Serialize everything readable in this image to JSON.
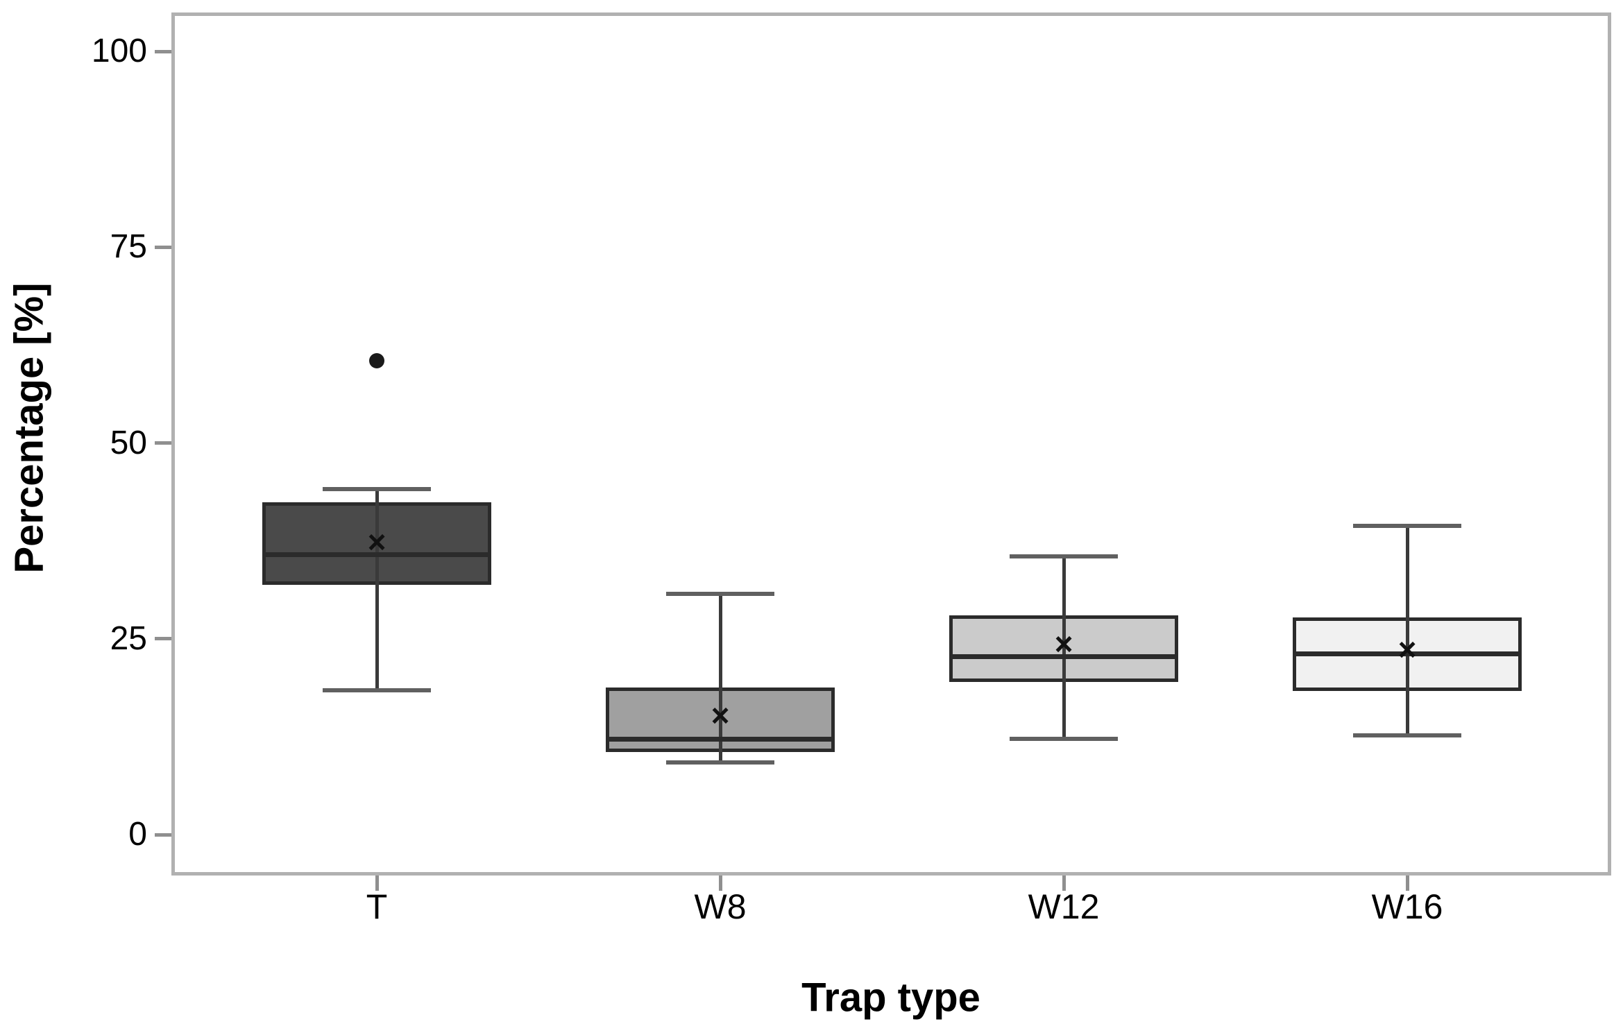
{
  "chart_data": {
    "type": "boxplot",
    "title": "",
    "xlabel": "Trap type",
    "ylabel": "Percentage [%]",
    "ylim": [
      0,
      100
    ],
    "yticks": [
      0,
      25,
      50,
      75,
      100
    ],
    "grid": false,
    "legend": false,
    "categories": [
      "T",
      "W8",
      "W12",
      "W16"
    ],
    "mean_marker_glyph": "×",
    "series": [
      {
        "category": "T",
        "whisker_low": 18.4,
        "q1": 31.9,
        "median": 35.7,
        "mean": 37.2,
        "q3": 42.4,
        "whisker_high": 44.1,
        "outliers": [
          60.5
        ],
        "fill": "#4a4a4a"
      },
      {
        "category": "W8",
        "whisker_low": 9.2,
        "q1": 10.5,
        "median": 12.2,
        "mean": 15.1,
        "q3": 18.8,
        "whisker_high": 30.7,
        "outliers": [],
        "fill": "#a0a0a0"
      },
      {
        "category": "W12",
        "whisker_low": 12.2,
        "q1": 19.5,
        "median": 22.7,
        "mean": 24.2,
        "q3": 28.0,
        "whisker_high": 35.5,
        "outliers": [],
        "fill": "#cbcbcb"
      },
      {
        "category": "W16",
        "whisker_low": 12.7,
        "q1": 18.3,
        "median": 23.1,
        "mean": 23.5,
        "q3": 27.7,
        "whisker_high": 39.4,
        "outliers": [],
        "fill": "#f1f1f1"
      }
    ],
    "colors": {
      "box_border": "#2b2b2b",
      "median_line": "#2b2b2b",
      "whisker_line": "#3a3a3a",
      "whisker_cap": "#606060",
      "frame": "#b1b1b1",
      "tick": "#8f8f8f",
      "text": "#000000",
      "outlier": "#1a1a1a",
      "background": "#ffffff"
    }
  }
}
